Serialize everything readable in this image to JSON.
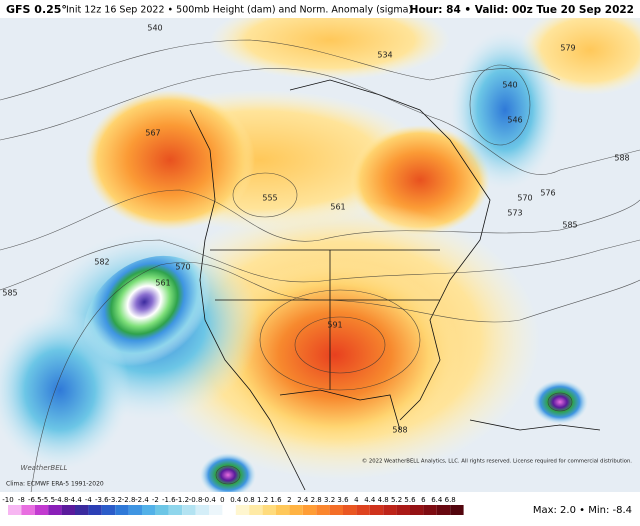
{
  "header": {
    "model": "GFS 0.25°",
    "init": "Init 12z 16 Sep 2022 • 500mb Height (dam) and Norm. Anomaly (sigma)",
    "valid": "Hour: 84 • Valid: 00z Tue 20 Sep 2022"
  },
  "footer": {
    "clima": "Clima: ECMWF ERA-5 1991-2020",
    "copyright": "© 2022 WeatherBELL Analytics, LLC. All rights reserved. License required for commercial distribution.",
    "maxmin": "Max: 2.0 • Min: -8.4",
    "logo": "WeatherBELL"
  },
  "colorbar": {
    "labels": [
      -10,
      -8,
      -6.5,
      -5.5,
      -4.8,
      -4.4,
      -4,
      -3.6,
      -3.2,
      -2.8,
      -2.4,
      -2,
      -1.6,
      -1.2,
      -0.8,
      -0.4,
      0,
      0.4,
      0.8,
      1.2,
      1.6,
      2,
      2.4,
      2.8,
      3.2,
      3.6,
      4,
      4.4,
      4.8,
      5.2,
      5.6,
      6,
      6.4,
      6.8
    ],
    "colors": [
      "#f7b6f2",
      "#e86ee0",
      "#c23ad0",
      "#8a1fb8",
      "#5a1a9c",
      "#3b2a9e",
      "#2c3fb5",
      "#2b5cc9",
      "#2f79d8",
      "#3f95e2",
      "#52b1e8",
      "#6cc6e6",
      "#8fd6ec",
      "#b3e3f2",
      "#d4eef8",
      "#ecf6fb",
      "#ffffff",
      "#fff6cf",
      "#ffeaa5",
      "#ffdb7c",
      "#ffc85a",
      "#ffb343",
      "#ff9d35",
      "#fb862d",
      "#f46e27",
      "#ea5722",
      "#de431f",
      "#cf321c",
      "#bd2419",
      "#aa1a17",
      "#941214",
      "#7e0c12",
      "#680810",
      "#52050d"
    ]
  },
  "contour_labels": [
    540,
    567,
    555,
    561,
    570,
    561,
    582,
    585,
    591,
    588,
    579,
    573,
    570,
    576,
    585,
    588,
    546,
    540,
    534
  ]
}
